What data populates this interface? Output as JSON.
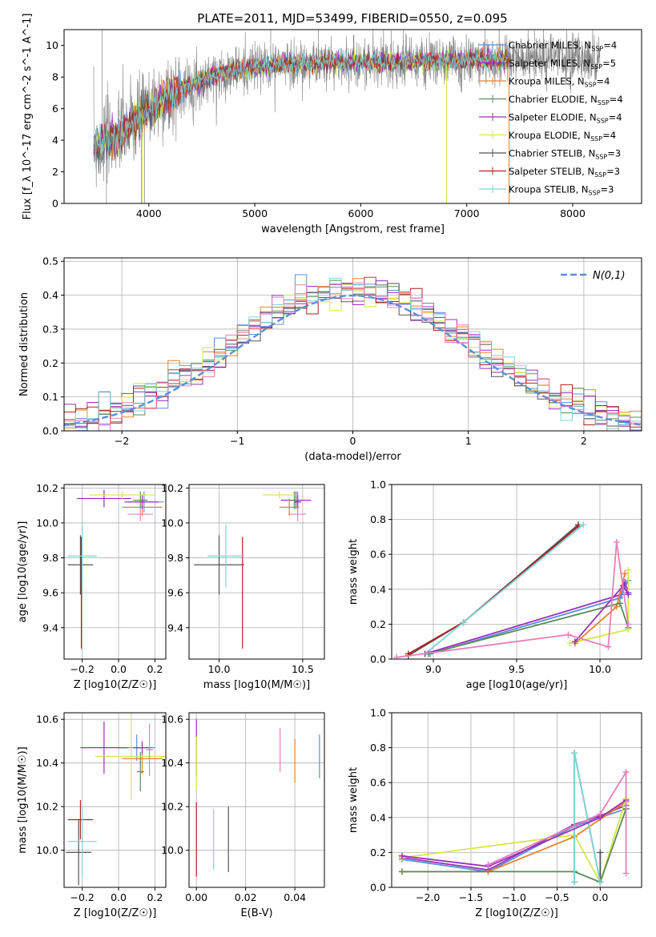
{
  "figure_title": "PLATE=2011, MJD=53499, FIBERID=0550, z=0.095",
  "colors": {
    "Chabrier MILES": "#5b8fd9",
    "Salpeter MILES": "#9b30b8",
    "Kroupa MILES": "#e6822a",
    "Chabrier ELODIE": "#5a8a5a",
    "Salpeter ELODIE": "#9b30b8",
    "Kroupa ELODIE": "#d5e64a",
    "Chabrier STELIB": "#555555",
    "Salpeter STELIB": "#b22222",
    "Kroupa STELIB": "#7fd6d6",
    "data": "#808080",
    "extra_pink": "#e67fb8",
    "normal": "#5b8fd9"
  },
  "chart_data": [
    {
      "id": "spectrum",
      "type": "line",
      "title": "PLATE=2011, MJD=53499, FIBERID=0550, z=0.095",
      "xlabel": "wavelength [Angstrom, rest frame]",
      "ylabel": "Flux [f_λ 10^-17 erg cm^-2 s^-1 A^-1]",
      "xlim": [
        3200,
        8650
      ],
      "ylim": [
        0,
        11
      ],
      "xticks": [
        4000,
        5000,
        6000,
        7000,
        8000
      ],
      "yticks": [
        0,
        2,
        4,
        6,
        8,
        10
      ],
      "grid": false,
      "legend_position": "top-right",
      "legend": [
        "Chabrier MILES, N_SSP=4",
        "Salpeter MILES, N_SSP=5",
        "Kroupa MILES, N_SSP=4",
        "Chabrier ELODIE, N_SSP=4",
        "Salpeter ELODIE, N_SSP=4",
        "Kroupa ELODIE, N_SSP=4",
        "Chabrier STELIB, N_SSP=3",
        "Salpeter STELIB, N_SSP=3",
        "Kroupa STELIB, N_SSP=3"
      ],
      "data_wavelength_range": [
        3480,
        8260
      ],
      "model_wavelength_range": [
        3480,
        7400
      ],
      "continuum_x": [
        3480,
        3700,
        4000,
        4300,
        4700,
        5200,
        5700,
        6200,
        6700,
        7400,
        8260
      ],
      "continuum_y": [
        3.6,
        4.2,
        6.0,
        7.2,
        8.3,
        8.8,
        8.9,
        9.0,
        9.0,
        9.1,
        9.2
      ]
    },
    {
      "id": "residuals",
      "type": "histogram",
      "xlabel": "(data-model)/error",
      "ylabel": "Normed distribution",
      "xlim": [
        -2.5,
        2.5
      ],
      "ylim": [
        0,
        0.51
      ],
      "xticks": [
        -2,
        -1,
        0,
        1,
        2
      ],
      "yticks": [
        0,
        0.1,
        0.2,
        0.3,
        0.4,
        0.5
      ],
      "grid": true,
      "legend_position": "top-right",
      "legend": [
        "N(0,1)"
      ],
      "bin_width": 0.1,
      "range": [
        -2.5,
        2.5
      ]
    },
    {
      "id": "age_vs_Z",
      "type": "scatter",
      "xlabel": "Z [log10(Z/Z☉)]",
      "ylabel": "age  [log10(age/yr)]",
      "xlim": [
        -0.3,
        0.26
      ],
      "ylim": [
        9.22,
        10.22
      ],
      "xticks": [
        -0.2,
        0.0,
        0.2
      ],
      "yticks": [
        9.4,
        9.6,
        9.8,
        10.0,
        10.2
      ],
      "grid": true,
      "points": [
        {
          "series": "Chabrier MILES",
          "x": 0.14,
          "y": 10.12,
          "xerr": 0.11,
          "yerr": 0.06
        },
        {
          "series": "Salpeter MILES",
          "x": -0.08,
          "y": 10.14,
          "xerr": 0.15,
          "yerr": 0.05
        },
        {
          "series": "Kroupa MILES",
          "x": 0.13,
          "y": 10.09,
          "xerr": 0.11,
          "yerr": 0.05
        },
        {
          "series": "Chabrier ELODIE",
          "x": 0.12,
          "y": 10.13,
          "xerr": 0.04,
          "yerr": 0.05
        },
        {
          "series": "Salpeter ELODIE",
          "x": 0.13,
          "y": 10.12,
          "xerr": 0.09,
          "yerr": 0.04
        },
        {
          "series": "Kroupa ELODIE",
          "x": 0.02,
          "y": 10.16,
          "xerr": 0.18,
          "yerr": 0.02
        },
        {
          "series": "Chabrier STELIB",
          "x": -0.21,
          "y": 9.76,
          "xerr": 0.07,
          "yerr": 0.17
        },
        {
          "series": "Salpeter STELIB",
          "x": -0.205,
          "y": 9.6,
          "xerr": 0.0,
          "yerr": 0.32
        },
        {
          "series": "Kroupa STELIB",
          "x": -0.2,
          "y": 9.81,
          "xerr": 0.08,
          "yerr": 0.18
        },
        {
          "series": "extra",
          "x": 0.12,
          "y": 10.05,
          "xerr": 0.07,
          "yerr": 0.04
        }
      ]
    },
    {
      "id": "age_vs_mass",
      "type": "scatter",
      "xlabel": "mass [log10(M/M☉)]",
      "ylabel": "",
      "xlim": [
        9.82,
        10.63
      ],
      "ylim": [
        9.22,
        10.22
      ],
      "xticks": [
        10.0,
        10.5
      ],
      "yticks": [
        9.4,
        9.6,
        9.8,
        10.0,
        10.2
      ],
      "grid": true,
      "points": [
        {
          "series": "Chabrier MILES",
          "x": 10.47,
          "y": 10.12,
          "xerr": 0.02,
          "yerr": 0.06
        },
        {
          "series": "Salpeter MILES",
          "x": 10.46,
          "y": 10.13,
          "xerr": 0.09,
          "yerr": 0.05
        },
        {
          "series": "Kroupa MILES",
          "x": 10.42,
          "y": 10.09,
          "xerr": 0.06,
          "yerr": 0.05
        },
        {
          "series": "Chabrier ELODIE",
          "x": 10.45,
          "y": 10.13,
          "xerr": 0.02,
          "yerr": 0.05
        },
        {
          "series": "Salpeter ELODIE",
          "x": 10.47,
          "y": 10.12,
          "xerr": 0.02,
          "yerr": 0.04
        },
        {
          "series": "Kroupa ELODIE",
          "x": 10.36,
          "y": 10.16,
          "xerr": 0.1,
          "yerr": 0.02
        },
        {
          "series": "Chabrier STELIB",
          "x": 10.0,
          "y": 9.76,
          "xerr": 0.15,
          "yerr": 0.17
        },
        {
          "series": "Salpeter STELIB",
          "x": 10.14,
          "y": 9.6,
          "xerr": 0.0,
          "yerr": 0.32
        },
        {
          "series": "Kroupa STELIB",
          "x": 10.04,
          "y": 9.81,
          "xerr": 0.11,
          "yerr": 0.18
        },
        {
          "series": "extra",
          "x": 10.47,
          "y": 10.05,
          "xerr": 0.05,
          "yerr": 0.04
        }
      ]
    },
    {
      "id": "weight_vs_age",
      "type": "line",
      "xlabel": "age  [log10(age/yr)]",
      "ylabel": "mass weight",
      "xlim": [
        8.75,
        10.25
      ],
      "ylim": [
        0,
        1.0
      ],
      "xticks": [
        9.0,
        9.5,
        10.0
      ],
      "yticks": [
        0,
        0.2,
        0.4,
        0.6,
        0.8,
        1.0
      ],
      "grid": true,
      "series": [
        {
          "name": "Chabrier STELIB",
          "x": [
            8.85,
            9.18,
            9.87
          ],
          "y": [
            0.02,
            0.21,
            0.77
          ]
        },
        {
          "name": "Salpeter STELIB",
          "x": [
            8.85,
            9.18,
            9.87
          ],
          "y": [
            0.03,
            0.21,
            0.76
          ]
        },
        {
          "name": "Kroupa STELIB",
          "x": [
            8.95,
            9.18,
            9.9
          ],
          "y": [
            0.03,
            0.21,
            0.77
          ]
        },
        {
          "name": "Salpeter MILES",
          "x": [
            8.95,
            10.13,
            10.15,
            10.17
          ],
          "y": [
            0.03,
            0.37,
            0.44,
            0.38
          ]
        },
        {
          "name": "Chabrier MILES",
          "x": [
            8.98,
            10.12,
            10.17
          ],
          "y": [
            0.03,
            0.35,
            0.45
          ]
        },
        {
          "name": "Kroupa MILES",
          "x": [
            9.85,
            10.1,
            10.15
          ],
          "y": [
            0.09,
            0.3,
            0.49
          ]
        },
        {
          "name": "Chabrier ELODIE",
          "x": [
            8.97,
            10.12,
            10.17
          ],
          "y": [
            0.03,
            0.32,
            0.18
          ]
        },
        {
          "name": "Kroupa ELODIE",
          "x": [
            9.82,
            10.17,
            10.17
          ],
          "y": [
            0.09,
            0.17,
            0.51
          ]
        },
        {
          "name": "Salpeter ELODIE",
          "x": [
            9.85,
            10.14,
            10.17
          ],
          "y": [
            0.1,
            0.42,
            0.37
          ]
        },
        {
          "name": "extra",
          "x": [
            8.78,
            9.81,
            10.05,
            10.1,
            10.17
          ],
          "y": [
            0.01,
            0.14,
            0.07,
            0.67,
            0.2
          ]
        }
      ]
    },
    {
      "id": "mass_vs_Z",
      "type": "scatter",
      "xlabel": "Z [log10(Z/Z☉)]",
      "ylabel": "mass [log10(M/M☉)]",
      "xlim": [
        -0.3,
        0.26
      ],
      "ylim": [
        9.83,
        10.63
      ],
      "xticks": [
        -0.2,
        0.0,
        0.2
      ],
      "yticks": [
        10.0,
        10.2,
        10.4,
        10.6
      ],
      "grid": true,
      "points": [
        {
          "series": "Chabrier MILES",
          "x": 0.1,
          "y": 10.47,
          "xerr": 0.1,
          "yerr": 0.06
        },
        {
          "series": "Salpeter MILES",
          "x": -0.08,
          "y": 10.47,
          "xerr": 0.13,
          "yerr": 0.12
        },
        {
          "series": "Kroupa MILES",
          "x": 0.13,
          "y": 10.42,
          "xerr": 0.11,
          "yerr": 0.07
        },
        {
          "series": "Chabrier ELODIE",
          "x": 0.12,
          "y": 10.36,
          "xerr": 0.02,
          "yerr": 0.09
        },
        {
          "series": "Salpeter ELODIE",
          "x": 0.13,
          "y": 10.47,
          "xerr": 0.05,
          "yerr": 0.03
        },
        {
          "series": "Kroupa ELODIE",
          "x": 0.07,
          "y": 10.43,
          "xerr": 0.2,
          "yerr": 0.2
        },
        {
          "series": "Chabrier STELIB",
          "x": -0.22,
          "y": 9.99,
          "xerr": 0.07,
          "yerr": 0.15
        },
        {
          "series": "Salpeter STELIB",
          "x": -0.21,
          "y": 10.14,
          "xerr": 0.07,
          "yerr": 0.09
        },
        {
          "series": "Kroupa STELIB",
          "x": -0.2,
          "y": 10.04,
          "xerr": 0.08,
          "yerr": 0.16
        },
        {
          "series": "extra",
          "x": 0.17,
          "y": 10.46,
          "xerr": 0.02,
          "yerr": 0.12
        }
      ]
    },
    {
      "id": "mass_vs_ebv",
      "type": "scatter",
      "xlabel": "E(B-V)",
      "ylabel": "",
      "xlim": [
        -0.003,
        0.052
      ],
      "ylim": [
        9.83,
        10.63
      ],
      "xticks": [
        0.0,
        0.02,
        0.04
      ],
      "yticks": [
        10.0,
        10.2,
        10.4,
        10.6
      ],
      "grid": true,
      "points": [
        {
          "series": "Salpeter MILES",
          "x": 0.0,
          "y": 10.47,
          "xerr": 0,
          "yerr": 0.13
        },
        {
          "series": "Kroupa ELODIE",
          "x": 0.0,
          "y": 10.4,
          "xerr": 0,
          "yerr": 0.12
        },
        {
          "series": "Salpeter STELIB",
          "x": 0.0,
          "y": 10.05,
          "xerr": 0,
          "yerr": 0.17
        },
        {
          "series": "Kroupa STELIB",
          "x": 0.007,
          "y": 10.05,
          "xerr": 0,
          "yerr": 0.14
        },
        {
          "series": "Chabrier STELIB",
          "x": 0.013,
          "y": 10.05,
          "xerr": 0,
          "yerr": 0.15
        },
        {
          "series": "extra",
          "x": 0.034,
          "y": 10.46,
          "xerr": 0,
          "yerr": 0.1
        },
        {
          "series": "Kroupa MILES",
          "x": 0.04,
          "y": 10.41,
          "xerr": 0,
          "yerr": 0.1
        },
        {
          "series": "Chabrier MILES",
          "x": 0.05,
          "y": 10.43,
          "xerr": 0,
          "yerr": 0.1
        }
      ]
    },
    {
      "id": "weight_vs_Z",
      "type": "line",
      "xlabel": "Z [log10(Z/Z☉)]",
      "ylabel": "mass weight",
      "xlim": [
        -2.42,
        0.48
      ],
      "ylim": [
        0,
        1.0
      ],
      "xticks": [
        -2.0,
        -1.5,
        -1.0,
        -0.5,
        0.0
      ],
      "yticks": [
        0,
        0.2,
        0.4,
        0.6,
        0.8,
        1.0
      ],
      "grid": true,
      "series": [
        {
          "name": "Salpeter MILES",
          "x": [
            -2.3,
            -1.3,
            -0.3,
            0.0,
            0.3
          ],
          "y": [
            0.17,
            0.1,
            0.36,
            0.41,
            0.47
          ]
        },
        {
          "name": "Chabrier MILES",
          "x": [
            -2.3,
            -1.3,
            -0.3,
            0.0,
            0.3
          ],
          "y": [
            0.16,
            0.09,
            0.35,
            0.4,
            0.45
          ]
        },
        {
          "name": "Kroupa MILES",
          "x": [
            -2.3,
            -1.3,
            -0.3,
            0.3
          ],
          "y": [
            0.09,
            0.09,
            0.29,
            0.49
          ]
        },
        {
          "name": "Kroupa ELODIE",
          "x": [
            -2.3,
            -0.3,
            0.0,
            0.3,
            0.3
          ],
          "y": [
            0.17,
            0.3,
            0.03,
            0.51,
            0.45
          ]
        },
        {
          "name": "Chabrier ELODIE",
          "x": [
            -2.3,
            -0.3,
            0.0,
            0.3
          ],
          "y": [
            0.09,
            0.09,
            0.03,
            0.45
          ]
        },
        {
          "name": "Chabrier STELIB",
          "x": [
            -0.3,
            -0.3,
            0.0,
            0.0
          ],
          "y": [
            0.03,
            0.77,
            0.03,
            0.2
          ]
        },
        {
          "name": "Kroupa STELIB",
          "x": [
            -0.3,
            -0.3,
            0.0
          ],
          "y": [
            0.03,
            0.77,
            0.03
          ]
        },
        {
          "name": "Salpeter ELODIE",
          "x": [
            -2.3,
            -1.3,
            0.0,
            0.3
          ],
          "y": [
            0.18,
            0.12,
            0.4,
            0.5
          ]
        },
        {
          "name": "extra",
          "x": [
            -1.3,
            0.0,
            0.3,
            0.3
          ],
          "y": [
            0.13,
            0.42,
            0.66,
            0.08
          ]
        }
      ]
    }
  ]
}
